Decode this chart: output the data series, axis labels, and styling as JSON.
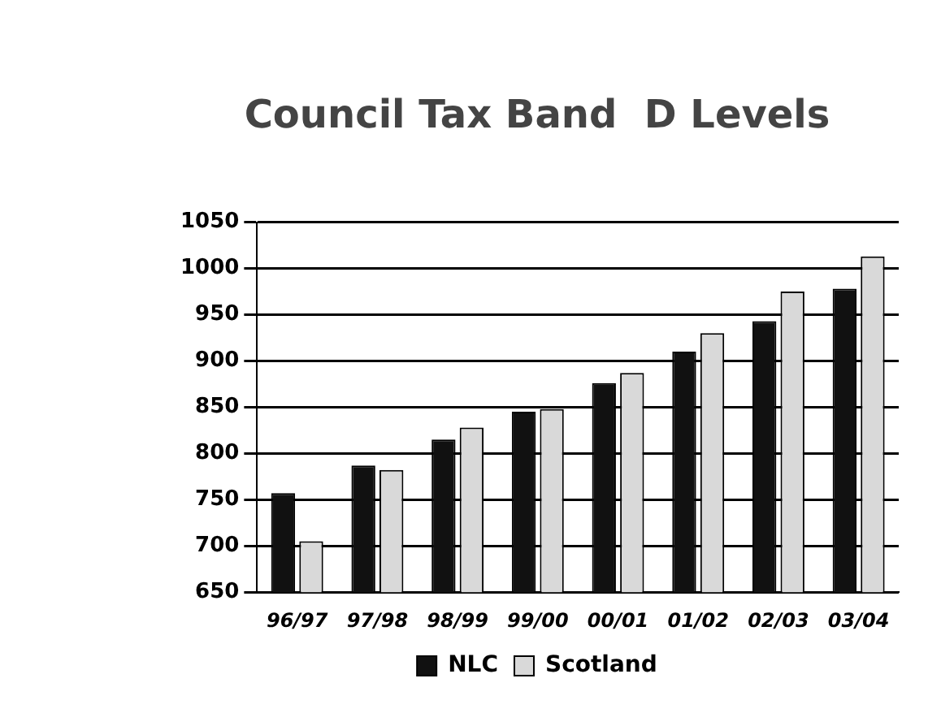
{
  "chart_data": {
    "type": "bar",
    "title": "Council Tax Band  D Levels",
    "categories": [
      "96/97",
      "97/98",
      "98/99",
      "99/00",
      "00/01",
      "01/02",
      "02/03",
      "03/04"
    ],
    "series": [
      {
        "name": "NLC",
        "color": "#111111",
        "values": [
          757,
          787,
          815,
          845,
          876,
          910,
          943,
          978
        ]
      },
      {
        "name": "Scotland",
        "color": "#d9d9d9",
        "values": [
          705,
          782,
          828,
          848,
          887,
          930,
          975,
          1013
        ]
      }
    ],
    "ylim": [
      650,
      1050
    ],
    "yticks": [
      650,
      700,
      750,
      800,
      850,
      900,
      950,
      1000,
      1050
    ],
    "grid": "y",
    "legend": "bottom"
  }
}
